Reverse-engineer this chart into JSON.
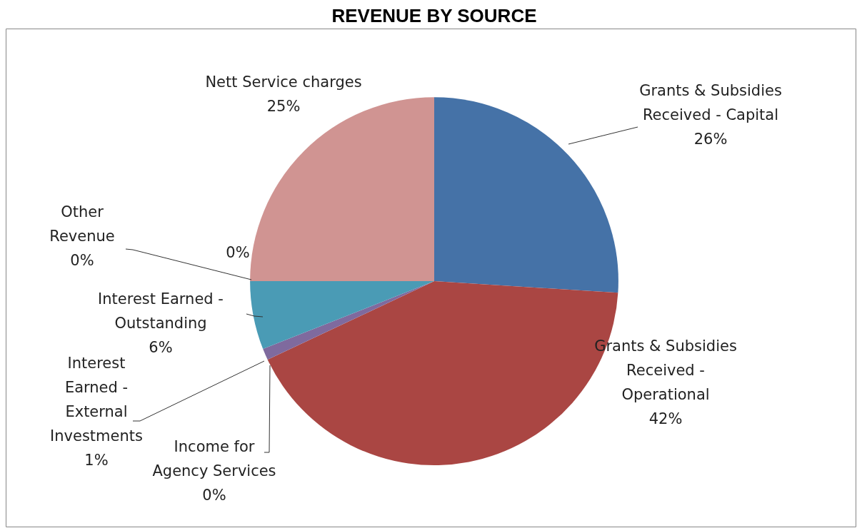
{
  "chart_data": {
    "type": "pie",
    "title": "REVENUE BY SOURCE",
    "categories": [
      "Grants & Subsidies Received - Capital",
      "Grants & Subsidies Received - Operational",
      "Income for Agency Services",
      "Interest Earned - External Investments",
      "Interest Earned - Outstanding",
      "Other Revenue",
      null,
      "Nett Service charges"
    ],
    "values": [
      26,
      42,
      0,
      1,
      6,
      0,
      0,
      25
    ],
    "colors": [
      "#4572a7",
      "#aa4643",
      "#7f6a9e",
      "#7f6a9e",
      "#4a9bb5",
      "#f0963c",
      "#f0963c",
      "#d09492"
    ],
    "value_labels": [
      "26%",
      "42%",
      "0%",
      "1%",
      "6%",
      "0%",
      "0%",
      "25%"
    ],
    "data_labels": true,
    "legend": false
  }
}
